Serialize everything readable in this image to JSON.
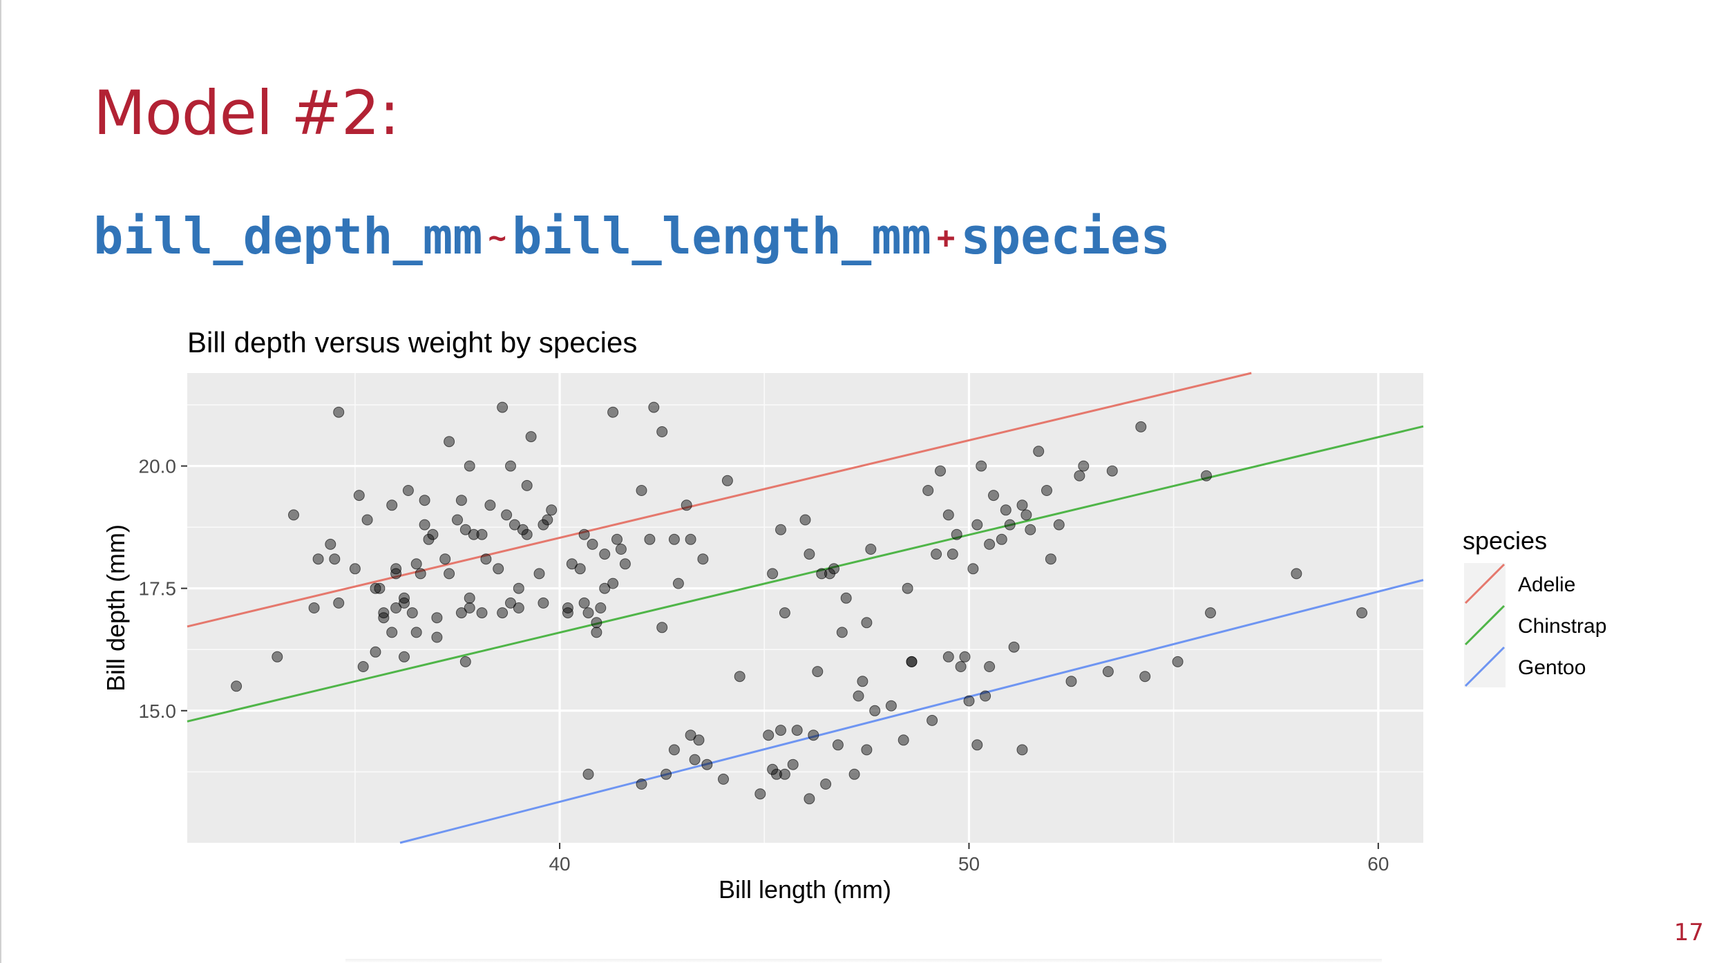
{
  "slide": {
    "title": "Model #2:",
    "formula": {
      "response": "bill_depth_mm",
      "tilde": "~",
      "term1": "bill_length_mm",
      "plus": "+",
      "term2": "species"
    },
    "page_number": "17"
  },
  "colors": {
    "title": "#b22234",
    "formula": "#3174b8",
    "panel": "#ebebeb",
    "adelie": "#e5786d",
    "chinstrap": "#4fb548",
    "gentoo": "#6e95f2"
  },
  "chart_data": {
    "type": "scatter",
    "title": "Bill depth versus weight by species",
    "xlabel": "Bill length (mm)",
    "ylabel": "Bill depth (mm)",
    "xlim": [
      30.9,
      61.1
    ],
    "ylim": [
      12.3,
      21.9
    ],
    "x_ticks": [
      40,
      50,
      60
    ],
    "x_tick_labels": [
      "40",
      "50",
      "60"
    ],
    "y_ticks": [
      15.0,
      17.5,
      20.0
    ],
    "y_tick_labels": [
      "15.0",
      "17.5",
      "20.0"
    ],
    "grid": true,
    "legend": {
      "title": "species",
      "position": "right",
      "entries": [
        "Adelie",
        "Chinstrap",
        "Gentoo"
      ]
    },
    "lines": [
      {
        "name": "Adelie",
        "color": "#e5786d",
        "x": [
          30.9,
          56.9
        ],
        "y": [
          16.72,
          21.9
        ]
      },
      {
        "name": "Chinstrap",
        "color": "#4fb548",
        "x": [
          30.9,
          61.1
        ],
        "y": [
          14.78,
          20.81
        ]
      },
      {
        "name": "Gentoo",
        "color": "#6e95f2",
        "x": [
          36.1,
          61.1
        ],
        "y": [
          12.3,
          17.67
        ]
      }
    ],
    "points": [
      [
        32.1,
        15.5
      ],
      [
        33.1,
        16.1
      ],
      [
        33.5,
        19.0
      ],
      [
        34.0,
        17.1
      ],
      [
        34.1,
        18.1
      ],
      [
        34.4,
        18.4
      ],
      [
        34.5,
        18.1
      ],
      [
        34.6,
        21.1
      ],
      [
        34.6,
        17.2
      ],
      [
        35.0,
        17.9
      ],
      [
        35.1,
        19.4
      ],
      [
        35.2,
        15.9
      ],
      [
        35.3,
        18.9
      ],
      [
        35.5,
        16.2
      ],
      [
        35.5,
        17.5
      ],
      [
        35.6,
        17.5
      ],
      [
        35.7,
        16.9
      ],
      [
        35.7,
        17.0
      ],
      [
        35.9,
        16.6
      ],
      [
        35.9,
        19.2
      ],
      [
        36.0,
        17.1
      ],
      [
        36.0,
        17.8
      ],
      [
        36.0,
        17.9
      ],
      [
        36.2,
        16.1
      ],
      [
        36.2,
        17.2
      ],
      [
        36.2,
        17.3
      ],
      [
        36.3,
        19.5
      ],
      [
        36.4,
        17.0
      ],
      [
        36.5,
        16.6
      ],
      [
        36.5,
        18.0
      ],
      [
        36.6,
        17.8
      ],
      [
        36.7,
        18.8
      ],
      [
        36.7,
        19.3
      ],
      [
        36.8,
        18.5
      ],
      [
        36.9,
        18.6
      ],
      [
        37.0,
        16.5
      ],
      [
        37.0,
        16.9
      ],
      [
        37.2,
        18.1
      ],
      [
        37.3,
        17.8
      ],
      [
        37.3,
        20.5
      ],
      [
        37.5,
        18.9
      ],
      [
        37.6,
        17.0
      ],
      [
        37.6,
        19.3
      ],
      [
        37.7,
        16.0
      ],
      [
        37.7,
        18.7
      ],
      [
        37.8,
        17.1
      ],
      [
        37.8,
        17.3
      ],
      [
        37.8,
        20.0
      ],
      [
        37.9,
        18.6
      ],
      [
        38.1,
        17.0
      ],
      [
        38.1,
        18.6
      ],
      [
        38.2,
        18.1
      ],
      [
        38.3,
        19.2
      ],
      [
        38.5,
        17.9
      ],
      [
        38.6,
        17.0
      ],
      [
        38.6,
        21.2
      ],
      [
        38.7,
        19.0
      ],
      [
        38.8,
        17.2
      ],
      [
        38.8,
        20.0
      ],
      [
        38.9,
        18.8
      ],
      [
        39.0,
        17.1
      ],
      [
        39.0,
        17.5
      ],
      [
        39.1,
        18.7
      ],
      [
        39.2,
        18.6
      ],
      [
        39.2,
        19.6
      ],
      [
        39.3,
        20.6
      ],
      [
        39.5,
        17.8
      ],
      [
        39.6,
        17.2
      ],
      [
        39.6,
        18.8
      ],
      [
        39.7,
        18.9
      ],
      [
        39.8,
        19.1
      ],
      [
        40.2,
        17.0
      ],
      [
        40.2,
        17.1
      ],
      [
        40.3,
        18.0
      ],
      [
        40.5,
        17.9
      ],
      [
        40.6,
        17.2
      ],
      [
        40.6,
        18.6
      ],
      [
        40.7,
        17.0
      ],
      [
        40.8,
        18.4
      ],
      [
        40.9,
        16.6
      ],
      [
        40.9,
        16.8
      ],
      [
        41.0,
        17.1
      ],
      [
        41.1,
        17.5
      ],
      [
        41.1,
        18.2
      ],
      [
        41.3,
        17.6
      ],
      [
        41.3,
        21.1
      ],
      [
        41.4,
        18.5
      ],
      [
        41.5,
        18.3
      ],
      [
        41.6,
        18.0
      ],
      [
        42.0,
        19.5
      ],
      [
        42.2,
        18.5
      ],
      [
        42.3,
        21.2
      ],
      [
        42.5,
        16.7
      ],
      [
        42.5,
        20.7
      ],
      [
        42.8,
        18.5
      ],
      [
        42.9,
        17.6
      ],
      [
        43.1,
        19.2
      ],
      [
        43.2,
        18.5
      ],
      [
        43.5,
        18.1
      ],
      [
        44.1,
        19.7
      ],
      [
        40.7,
        13.7
      ],
      [
        42.0,
        13.5
      ],
      [
        42.6,
        13.7
      ],
      [
        42.8,
        14.2
      ],
      [
        43.2,
        14.5
      ],
      [
        43.3,
        14.0
      ],
      [
        43.4,
        14.4
      ],
      [
        43.6,
        13.9
      ],
      [
        44.0,
        13.6
      ],
      [
        44.4,
        15.7
      ],
      [
        44.9,
        13.3
      ],
      [
        45.1,
        14.5
      ],
      [
        45.2,
        13.8
      ],
      [
        45.3,
        13.7
      ],
      [
        45.4,
        14.6
      ],
      [
        45.5,
        13.7
      ],
      [
        45.7,
        13.9
      ],
      [
        45.8,
        14.6
      ],
      [
        46.1,
        13.2
      ],
      [
        46.2,
        14.5
      ],
      [
        46.3,
        15.8
      ],
      [
        46.5,
        13.5
      ],
      [
        46.8,
        14.3
      ],
      [
        47.2,
        13.7
      ],
      [
        47.3,
        15.3
      ],
      [
        47.5,
        14.2
      ],
      [
        47.7,
        15.0
      ],
      [
        48.1,
        15.1
      ],
      [
        48.4,
        14.4
      ],
      [
        48.6,
        16.0
      ],
      [
        49.1,
        14.8
      ],
      [
        49.5,
        16.1
      ],
      [
        49.8,
        15.9
      ],
      [
        50.0,
        15.2
      ],
      [
        50.2,
        14.3
      ],
      [
        50.4,
        15.3
      ],
      [
        50.5,
        15.9
      ],
      [
        51.1,
        16.3
      ],
      [
        51.3,
        14.2
      ],
      [
        52.5,
        15.6
      ],
      [
        53.4,
        15.8
      ],
      [
        54.3,
        15.7
      ],
      [
        55.1,
        16.0
      ],
      [
        55.9,
        17.0
      ],
      [
        59.6,
        17.0
      ],
      [
        58.0,
        17.8
      ],
      [
        45.2,
        17.8
      ],
      [
        45.4,
        18.7
      ],
      [
        46.0,
        18.9
      ],
      [
        46.1,
        18.2
      ],
      [
        46.4,
        17.8
      ],
      [
        46.6,
        17.8
      ],
      [
        46.7,
        17.9
      ],
      [
        47.0,
        17.3
      ],
      [
        47.5,
        16.8
      ],
      [
        47.6,
        18.3
      ],
      [
        48.5,
        17.5
      ],
      [
        49.0,
        19.5
      ],
      [
        49.2,
        18.2
      ],
      [
        49.3,
        19.9
      ],
      [
        49.6,
        18.2
      ],
      [
        49.7,
        18.6
      ],
      [
        50.2,
        18.8
      ],
      [
        50.5,
        18.4
      ],
      [
        50.9,
        19.1
      ],
      [
        51.0,
        18.8
      ],
      [
        51.3,
        19.2
      ],
      [
        51.4,
        19.0
      ],
      [
        51.5,
        18.7
      ],
      [
        51.7,
        20.3
      ],
      [
        52.0,
        18.1
      ],
      [
        52.2,
        18.8
      ],
      [
        52.8,
        20.0
      ],
      [
        53.5,
        19.9
      ],
      [
        54.2,
        20.8
      ],
      [
        55.8,
        19.8
      ],
      [
        50.8,
        18.5
      ],
      [
        49.9,
        16.1
      ],
      [
        50.6,
        19.4
      ],
      [
        51.9,
        19.5
      ],
      [
        50.1,
        17.9
      ],
      [
        46.9,
        16.6
      ],
      [
        45.5,
        17.0
      ],
      [
        49.5,
        19.0
      ],
      [
        50.3,
        20.0
      ],
      [
        52.7,
        19.8
      ],
      [
        48.6,
        16.0
      ],
      [
        47.4,
        15.6
      ]
    ]
  }
}
